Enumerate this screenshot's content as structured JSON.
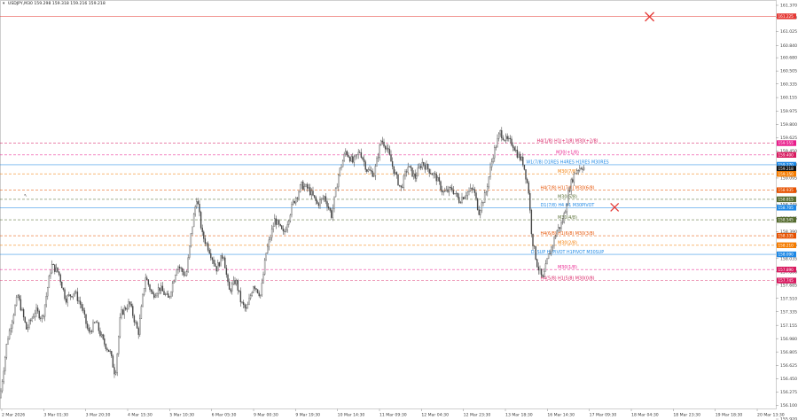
{
  "header": {
    "symbol_icon": "triangle-down-icon",
    "text": "USDJPY,M30  159.298 159.318 159.216 159.218"
  },
  "chart_data": {
    "type": "candlestick",
    "symbol": "USDJPY",
    "timeframe": "M30",
    "ohlc": {
      "open": 159.298,
      "high": 159.318,
      "low": 159.216,
      "close": 159.218
    },
    "ylim": [
      156.06,
      161.37
    ],
    "y_ticks": [
      161.37,
      161.21,
      161.025,
      160.84,
      160.68,
      160.505,
      160.335,
      160.155,
      159.975,
      159.8,
      159.625,
      159.45,
      159.27,
      159.095,
      158.92,
      158.745,
      158.565,
      158.39,
      158.215,
      158.035,
      157.86,
      157.685,
      157.51,
      157.335,
      157.155,
      156.98,
      156.805,
      156.625,
      156.45,
      156.275,
      156.1,
      155.92
    ],
    "y_tick_labels": [
      "161.370",
      "161.210",
      "161.025",
      "160.840",
      "160.680",
      "160.505",
      "160.335",
      "160.155",
      "159.975",
      "159.800",
      "159.625",
      "159.450",
      "159.270",
      "159.095",
      "158.920",
      "158.745",
      "158.565",
      "158.390",
      "158.215",
      "158.035",
      "157.860",
      "157.685",
      "157.510",
      "157.335",
      "157.155",
      "156.980",
      "156.805",
      "156.625",
      "156.450",
      "156.275",
      "156.100",
      "155.920"
    ],
    "x_tick_labels": [
      "2 Mar 2026",
      "3 Mar 01:30",
      "3 Mar 20:30",
      "4 Mar 15:30",
      "5 Mar 10:30",
      "6 Mar 05:30",
      "9 Mar 00:30",
      "9 Mar 19:30",
      "10 Mar 14:30",
      "11 Mar 09:30",
      "12 Mar 04:30",
      "12 Mar 23:30",
      "13 Mar 18:30",
      "16 Mar 14:30",
      "17 Mar 09:30",
      "18 Mar 04:30",
      "18 Mar 23:30",
      "19 Mar 18:30",
      "20 Mar 13:30"
    ],
    "current_price": 159.218,
    "price_tags": [
      {
        "value": 161.225,
        "label": "161.225",
        "color": "#e53935"
      },
      {
        "value": 159.555,
        "label": "159.555",
        "color": "#e91e8c"
      },
      {
        "value": 159.4,
        "label": "159.400",
        "color": "#d81b60"
      },
      {
        "value": 159.27,
        "label": "159.270",
        "color": "#1e88e5"
      },
      {
        "value": 159.218,
        "label": "159.218",
        "color": "#111111"
      },
      {
        "value": 159.15,
        "label": "159.150",
        "color": "#f57c00"
      },
      {
        "value": 158.935,
        "label": "158.935",
        "color": "#e65100"
      },
      {
        "value": 158.815,
        "label": "158.815",
        "color": "#556b2f"
      },
      {
        "value": 158.705,
        "label": "158.705",
        "color": "#1e88e5"
      },
      {
        "value": 158.545,
        "label": "158.545",
        "color": "#556b2f"
      },
      {
        "value": 158.335,
        "label": "158.335",
        "color": "#e65100"
      },
      {
        "value": 158.21,
        "label": "158.210",
        "color": "#f57c00"
      },
      {
        "value": 158.09,
        "label": "158.090",
        "color": "#1e88e5"
      },
      {
        "value": 157.89,
        "label": "157.890",
        "color": "#d81b60"
      },
      {
        "value": 157.745,
        "label": "157.745",
        "color": "#d81b60"
      }
    ],
    "levels": [
      {
        "value": 161.225,
        "label": "",
        "color": "#e53935",
        "dash": false
      },
      {
        "value": 159.555,
        "label": "H4(1/8) H1(+1/8) M30(+2/8)",
        "color": "#d81b60",
        "dash": true
      },
      {
        "value": 159.4,
        "label": "M30(+1/8)",
        "color": "#e91e8c",
        "dash": true
      },
      {
        "value": 159.27,
        "label": "W1(7/8) D1RES H4RES H1RES M30RES",
        "color": "#1e88e5",
        "dash": false
      },
      {
        "value": 159.15,
        "label": "M30(7/8)",
        "color": "#f57c00",
        "dash": true
      },
      {
        "value": 158.935,
        "label": "H4(7/8) H1(7/8) M30(6/8)",
        "color": "#e65100",
        "dash": true
      },
      {
        "value": 158.815,
        "label": "M30(5/8)",
        "color": "#556b2f",
        "dash": true
      },
      {
        "value": 158.705,
        "label": "D1(7/8) H4 H1 M30PIVOT",
        "color": "#1e88e5",
        "dash": false
      },
      {
        "value": 158.545,
        "label": "M30(4/8)",
        "color": "#556b2f",
        "dash": true
      },
      {
        "value": 158.335,
        "label": "H4(6/8) H1(6/8) M30(3/8)",
        "color": "#e65100",
        "dash": true
      },
      {
        "value": 158.21,
        "label": "M30(2/8)",
        "color": "#f57c00",
        "dash": true
      },
      {
        "value": 158.09,
        "label": "D1SUP H4PIVOT H1PIVOT M30SUP",
        "color": "#1e88e5",
        "dash": false
      },
      {
        "value": 157.89,
        "label": "M30(1/8)",
        "color": "#e91e8c",
        "dash": true
      },
      {
        "value": 157.745,
        "label": "H4(5/8) H1(5/8) M30(0/8)",
        "color": "#d81b60",
        "dash": true
      }
    ],
    "markers": [
      {
        "type": "x",
        "x_index": 0.985,
        "value": 161.22,
        "color": "#e53935"
      },
      {
        "type": "x",
        "x_index": 0.932,
        "value": 158.71,
        "color": "#e53935"
      }
    ],
    "grid": false,
    "colors": {
      "bull": "#444444",
      "bear": "#444444",
      "wick": "#444444"
    }
  }
}
